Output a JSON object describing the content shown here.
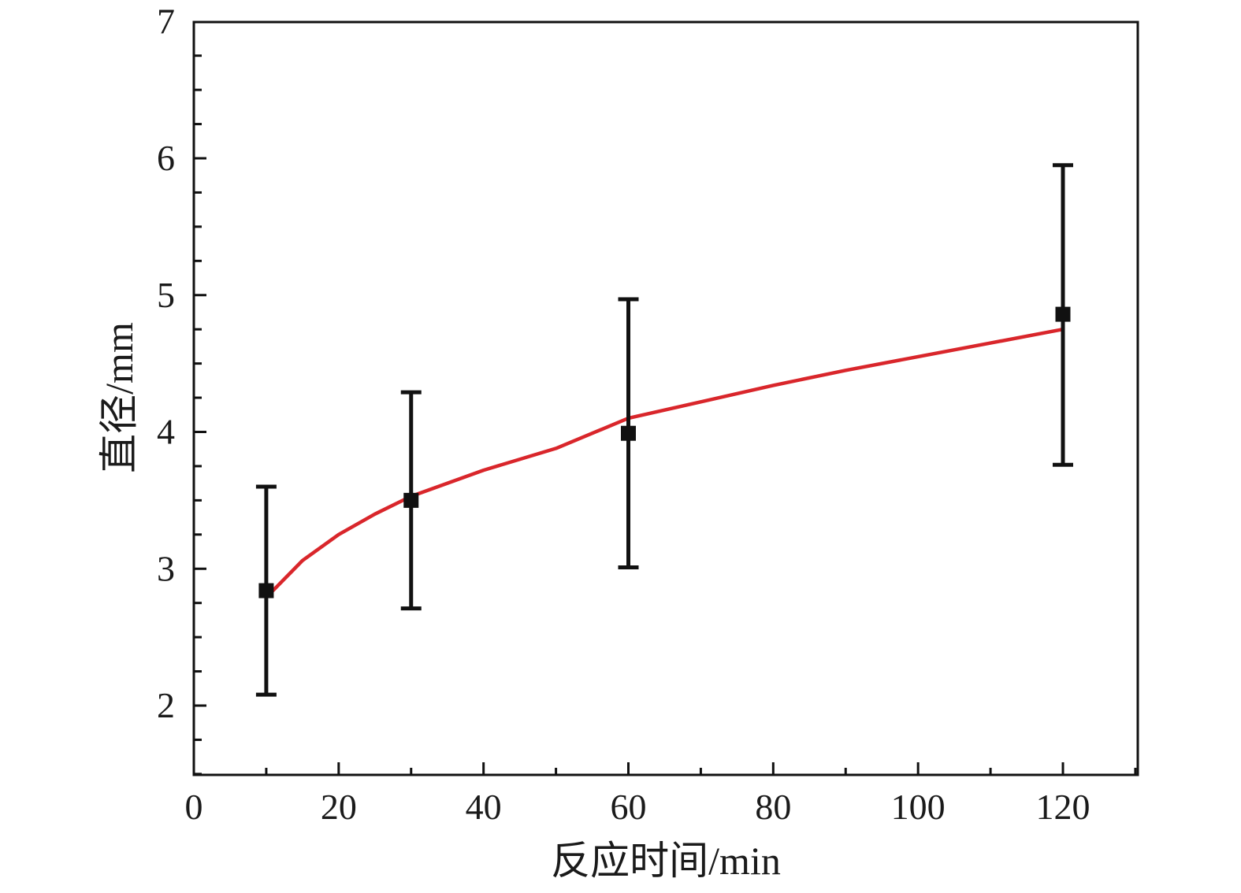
{
  "chart_data": {
    "type": "scatter",
    "xlabel": "反应时间/min",
    "ylabel": "直径/mm",
    "xlim": [
      0,
      130
    ],
    "ylim": [
      1.5,
      7
    ],
    "xticks": [
      0,
      20,
      40,
      60,
      80,
      100,
      120
    ],
    "yticks": [
      2,
      3,
      4,
      5,
      6,
      7
    ],
    "xtick_labels": [
      "0",
      "20",
      "40",
      "60",
      "80",
      "100",
      "120"
    ],
    "ytick_labels": [
      "2",
      "3",
      "4",
      "5",
      "6",
      "7"
    ],
    "grid": false,
    "series": [
      {
        "kind": "points_with_error_bars",
        "color": "#111111",
        "marker": "square",
        "x": [
          10,
          30,
          60,
          120
        ],
        "y": [
          2.84,
          3.5,
          3.99,
          4.86
        ],
        "error_low": [
          2.08,
          2.71,
          3.01,
          3.76
        ],
        "error_high": [
          3.6,
          4.29,
          4.97,
          5.95
        ]
      },
      {
        "kind": "fit_curve",
        "color": "#d9262b",
        "x": [
          10,
          15,
          20,
          25,
          30,
          40,
          50,
          60,
          70,
          80,
          90,
          100,
          110,
          120
        ],
        "y": [
          2.79,
          3.06,
          3.25,
          3.4,
          3.53,
          3.72,
          3.88,
          4.1,
          4.22,
          4.34,
          4.45,
          4.55,
          4.65,
          4.75
        ]
      }
    ]
  }
}
